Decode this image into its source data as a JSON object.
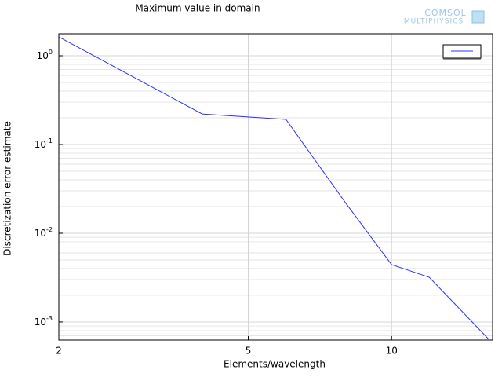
{
  "chart_data": {
    "type": "line",
    "title": "Maximum value in domain",
    "xlabel": "Elements/wavelength",
    "ylabel": "Discretization error estimate",
    "watermark": [
      "COMSOL",
      "MULTIPHYSICS"
    ],
    "x": [
      2,
      4,
      6,
      8,
      10,
      12,
      16
    ],
    "series": [
      {
        "color": "#2f2fff",
        "values": [
          1.63,
          0.221,
          0.192,
          0.0221,
          0.00443,
          0.00319,
          0.000638
        ]
      }
    ],
    "xlog": true,
    "ylog": true,
    "xlim": [
      2,
      16.3
    ],
    "ylim": [
      0.000625,
      1.77
    ],
    "xticks": [
      2,
      5,
      10
    ],
    "yticks": [
      {
        "value": 1,
        "label": "10",
        "sup": "0"
      },
      {
        "value": 0.1,
        "label": "10",
        "sup": "-1"
      },
      {
        "value": 0.01,
        "label": "10",
        "sup": "-2"
      },
      {
        "value": 0.001,
        "label": "10",
        "sup": "-3"
      }
    ],
    "grid": true,
    "minor_grid": true,
    "legend": "upper right"
  }
}
